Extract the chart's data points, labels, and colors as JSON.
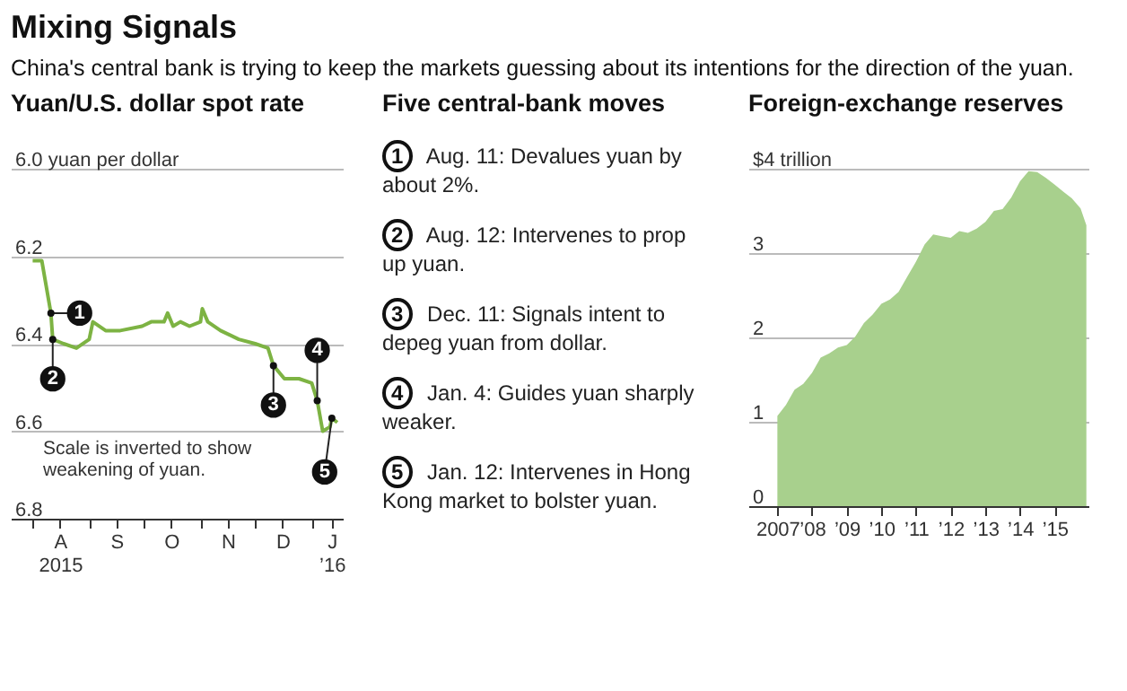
{
  "chart_data": [
    {
      "type": "other",
      "title": "Mixing Signals",
      "subtitle": "China's central bank is trying to keep the markets guessing about its intentions for the direction of the yuan."
    },
    {
      "type": "line",
      "title": "Yuan/U.S. dollar spot rate",
      "color": "#7db343",
      "line_style": "solid",
      "marker": "none",
      "grid": "y",
      "x": [
        "2015-08-01",
        "2015-08-06",
        "2015-08-11",
        "2015-08-12",
        "2015-08-18",
        "2015-08-25",
        "2015-09-01",
        "2015-09-03",
        "2015-09-10",
        "2015-09-18",
        "2015-09-30",
        "2015-10-05",
        "2015-10-12",
        "2015-10-14",
        "2015-10-17",
        "2015-10-21",
        "2015-10-26",
        "2015-11-01",
        "2015-11-02",
        "2015-11-05",
        "2015-11-12",
        "2015-11-22",
        "2015-12-01",
        "2015-12-08",
        "2015-12-11",
        "2015-12-17",
        "2015-12-25",
        "2016-01-01",
        "2016-01-04",
        "2016-01-07",
        "2016-01-11",
        "2016-01-12",
        "2016-01-15"
      ],
      "values": [
        6.21,
        6.21,
        6.33,
        6.39,
        6.4,
        6.41,
        6.39,
        6.35,
        6.37,
        6.37,
        6.36,
        6.35,
        6.35,
        6.33,
        6.36,
        6.35,
        6.36,
        6.35,
        6.32,
        6.35,
        6.37,
        6.39,
        6.4,
        6.41,
        6.45,
        6.48,
        6.48,
        6.49,
        6.53,
        6.6,
        6.59,
        6.57,
        6.58
      ],
      "xlim": [
        "2015-07-20",
        "2016-01-18"
      ],
      "xticks": [
        {
          "value": "2015-08-01",
          "label": null
        },
        {
          "value": "2015-08-16",
          "label": "A\n2015"
        },
        {
          "value": "2015-09-01",
          "label": null
        },
        {
          "value": "2015-09-16",
          "label": "S"
        },
        {
          "value": "2015-10-01",
          "label": null
        },
        {
          "value": "2015-10-16",
          "label": "O"
        },
        {
          "value": "2015-11-01",
          "label": null
        },
        {
          "value": "2015-11-16",
          "label": "N"
        },
        {
          "value": "2015-12-01",
          "label": null
        },
        {
          "value": "2015-12-16",
          "label": "D"
        },
        {
          "value": "2016-01-01",
          "label": null
        },
        {
          "value": "2016-01-12",
          "label": "J\n’16"
        }
      ],
      "ylim": [
        6.8,
        6.0
      ],
      "yticks": [
        {
          "value": 6.0,
          "label": "6.0 yuan per dollar"
        },
        6.2,
        6.4,
        6.6,
        6.8
      ],
      "annotations": [
        {
          "text": "1",
          "x": "2015-08-11",
          "y": 6.33
        },
        {
          "text": "2",
          "x": "2015-08-12",
          "y": 6.39
        },
        {
          "text": "3",
          "x": "2015-12-11",
          "y": 6.45
        },
        {
          "text": "4",
          "x": "2016-01-04",
          "y": 6.53
        },
        {
          "text": "5",
          "x": "2016-01-12",
          "y": 6.57
        },
        "Scale is inverted to show weakening of yuan."
      ]
    },
    {
      "type": "other",
      "title": "Five central-bank moves",
      "annotations": [
        "1 Aug. 11: Devalues yuan by about 2%.",
        "2 Aug. 12: Intervenes to prop up yuan.",
        "3 Dec. 11: Signals intent to depeg yuan from dollar.",
        "4 Jan. 4: Guides yuan sharply weaker.",
        "5 Jan. 12: Intervenes in Hong Kong market to bolster yuan."
      ]
    },
    {
      "type": "area",
      "title": "Foreign-exchange reserves",
      "color": "#a8d08d",
      "grid": "y",
      "x": [
        "2007-01",
        "2007-04",
        "2007-07",
        "2007-10",
        "2008-01",
        "2008-04",
        "2008-07",
        "2008-10",
        "2009-01",
        "2009-04",
        "2009-07",
        "2009-10",
        "2010-01",
        "2010-04",
        "2010-07",
        "2010-10",
        "2011-01",
        "2011-04",
        "2011-07",
        "2011-10",
        "2012-01",
        "2012-04",
        "2012-07",
        "2012-10",
        "2013-01",
        "2013-04",
        "2013-07",
        "2013-10",
        "2014-01",
        "2014-04",
        "2014-07",
        "2014-10",
        "2015-01",
        "2015-04",
        "2015-07",
        "2015-10",
        "2015-12"
      ],
      "values": [
        1.07,
        1.2,
        1.38,
        1.45,
        1.58,
        1.76,
        1.81,
        1.88,
        1.91,
        2.01,
        2.17,
        2.27,
        2.4,
        2.45,
        2.54,
        2.72,
        2.9,
        3.1,
        3.22,
        3.2,
        3.18,
        3.26,
        3.24,
        3.29,
        3.37,
        3.5,
        3.52,
        3.66,
        3.85,
        3.97,
        3.96,
        3.89,
        3.81,
        3.73,
        3.65,
        3.53,
        3.33
      ],
      "xlim": [
        "2006-03",
        "2016-01"
      ],
      "xticks": [
        {
          "value": "2007",
          "label": "2007"
        },
        {
          "value": "2008",
          "label": "’08"
        },
        {
          "value": "2009",
          "label": "’09"
        },
        {
          "value": "2010",
          "label": "’10"
        },
        {
          "value": "2011",
          "label": "’11"
        },
        {
          "value": "2012",
          "label": "’12"
        },
        {
          "value": "2013",
          "label": "’13"
        },
        {
          "value": "2014",
          "label": "’14"
        },
        {
          "value": "2015",
          "label": "’15"
        }
      ],
      "ylim": [
        0,
        4
      ],
      "yticks": [
        0,
        1,
        2,
        3,
        {
          "value": 4,
          "label": "$4 trillion"
        }
      ]
    }
  ]
}
